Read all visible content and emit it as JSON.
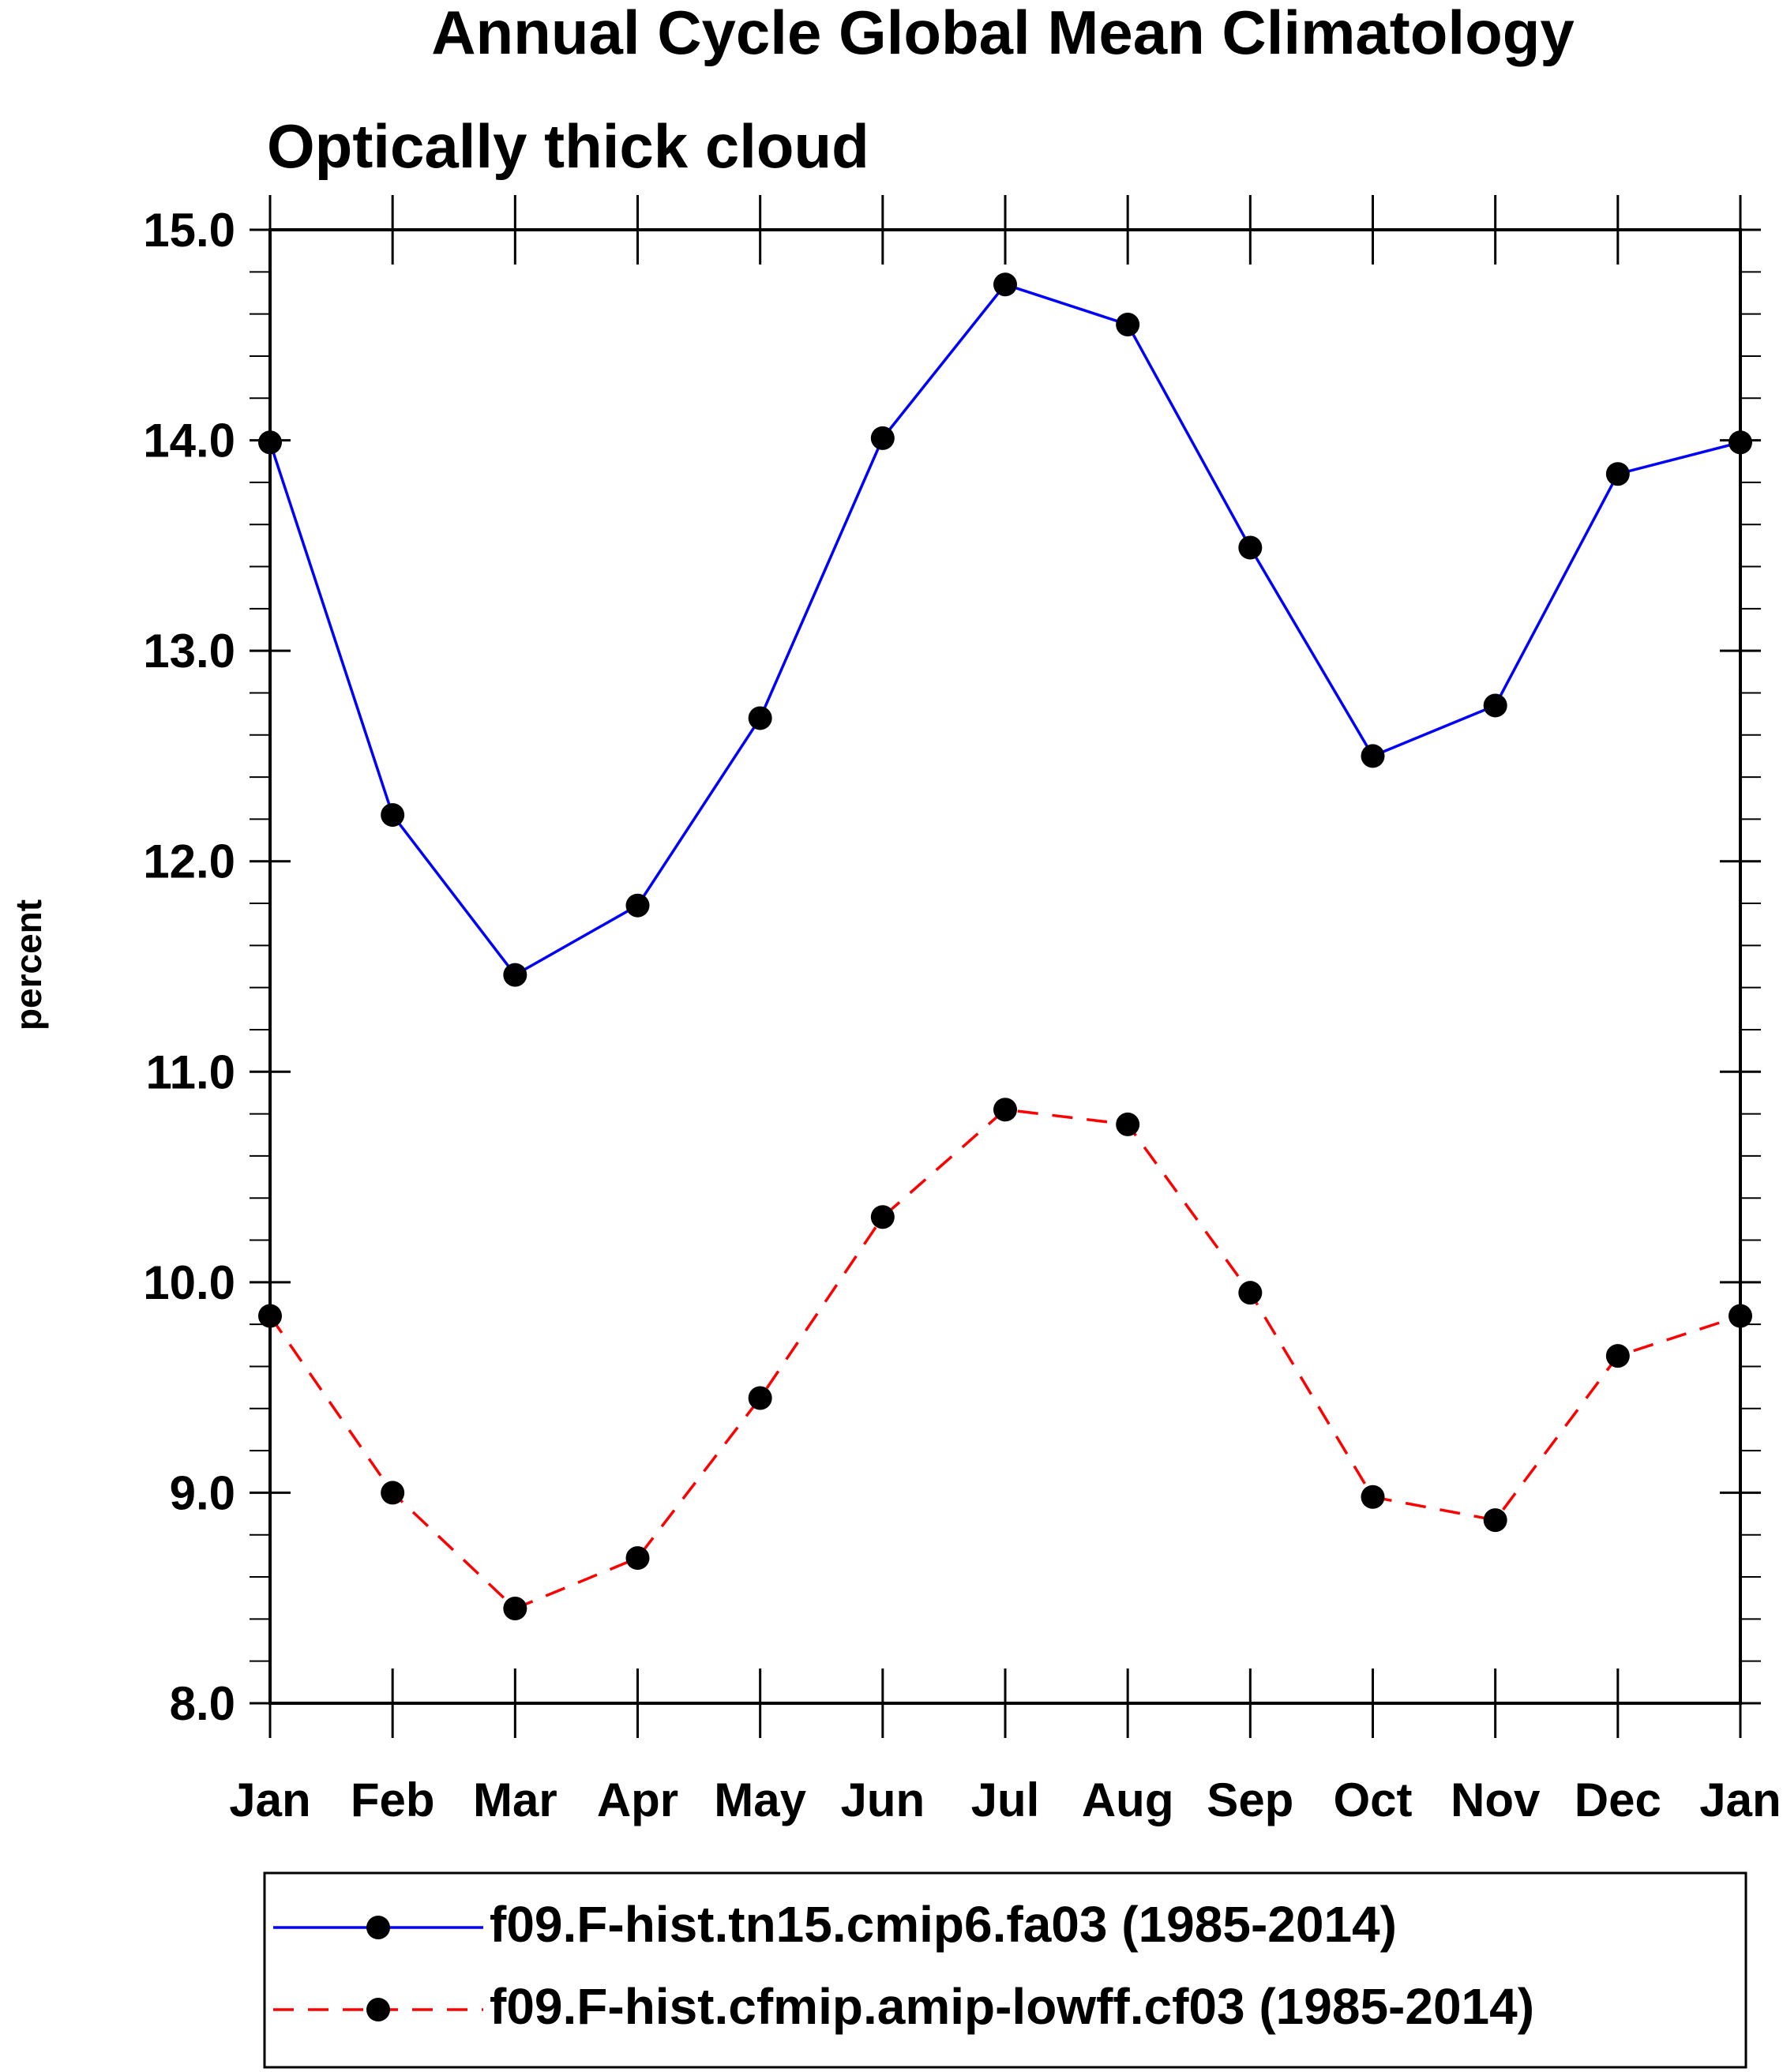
{
  "chart_data": {
    "type": "line",
    "title": "Annual Cycle Global Mean Climatology",
    "subtitle": "Optically thick cloud",
    "ylabel": "percent",
    "xlabel": "",
    "categories": [
      "Jan",
      "Feb",
      "Mar",
      "Apr",
      "May",
      "Jun",
      "Jul",
      "Aug",
      "Sep",
      "Oct",
      "Nov",
      "Dec",
      "Jan"
    ],
    "ylim": [
      8.0,
      15.0
    ],
    "yticks": [
      "8.0",
      "9.0",
      "10.0",
      "11.0",
      "12.0",
      "13.0",
      "14.0",
      "15.0"
    ],
    "ytick_values": [
      8,
      9,
      10,
      11,
      12,
      13,
      14,
      15
    ],
    "y_minor_step": 0.2,
    "grid": false,
    "legend_position": "bottom",
    "series": [
      {
        "name": "f09.F-hist.tn15.cmip6.fa03 (1985-2014)",
        "color": "#0000ff",
        "dash": "solid",
        "marker": "circle",
        "values": [
          13.99,
          12.22,
          11.46,
          11.79,
          12.68,
          14.01,
          14.74,
          14.55,
          13.49,
          12.5,
          12.74,
          13.84,
          13.99
        ]
      },
      {
        "name": "f09.F-hist.cfmip.amip-lowff.cf03 (1985-2014)",
        "color": "#ff0000",
        "dash": "dashed",
        "marker": "circle",
        "values": [
          9.84,
          9.0,
          8.45,
          8.69,
          9.45,
          10.31,
          10.82,
          10.75,
          9.95,
          8.98,
          8.87,
          9.65,
          9.84
        ]
      }
    ]
  }
}
